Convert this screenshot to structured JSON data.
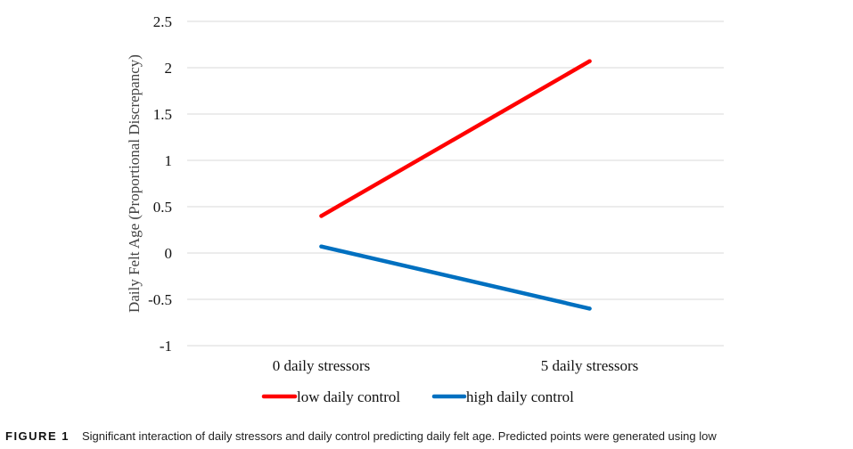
{
  "chart_data": {
    "type": "line",
    "categories": [
      "0 daily stressors",
      "5 daily stressors"
    ],
    "series": [
      {
        "name": "low daily control",
        "values": [
          0.4,
          2.07
        ],
        "color": "#ff0000"
      },
      {
        "name": "high daily control",
        "values": [
          0.07,
          -0.6
        ],
        "color": "#0070c0"
      }
    ],
    "ylabel": "Daily Felt Age (Proportional Discrepancy)",
    "xlabel": "",
    "ylim": [
      -1,
      2.5
    ],
    "yticks": [
      2.5,
      2,
      1.5,
      1,
      0.5,
      0,
      -0.5,
      -1
    ],
    "ytick_labels": [
      "2.5",
      "2",
      "1.5",
      "1",
      "0.5",
      "0",
      "-0.5",
      "-1"
    ],
    "grid": true,
    "gridline_color": "#d9d9d9",
    "legend_position": "bottom"
  },
  "caption": {
    "label": "FIGURE 1",
    "text": "Significant interaction of daily stressors and daily control predicting daily felt age. Predicted points were generated using low"
  }
}
